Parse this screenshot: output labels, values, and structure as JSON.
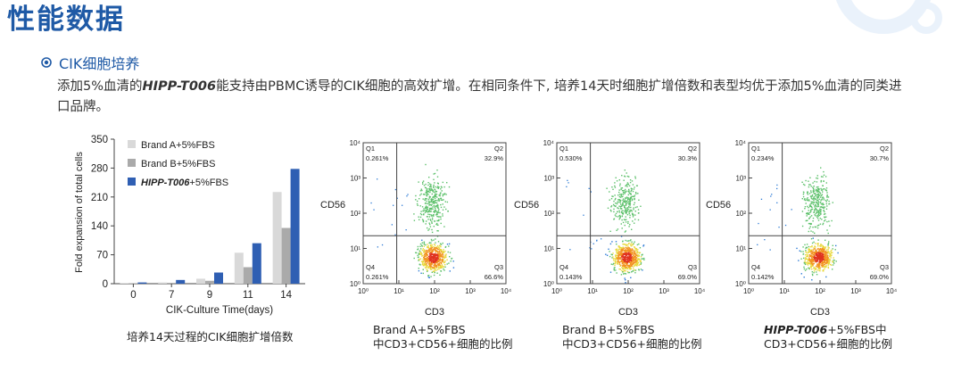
{
  "header": {
    "title": "性能数据"
  },
  "section": {
    "title": "CIK细胞培养",
    "desc_1": "添加5%血清的",
    "desc_product": "HIPP-T006",
    "desc_2": "能支持由PBMC诱导的CIK细胞的高效扩增。在相同条件下, 培养14天时细胞扩增倍数和表型均优于添加5%血清的同类进口品牌。"
  },
  "chart_data": [
    {
      "type": "bar",
      "title": "",
      "xlabel": "CIK-Culture Time(days)",
      "ylabel": "Fold expansion of total cells",
      "categories": [
        "0",
        "7",
        "9",
        "11",
        "14"
      ],
      "ylim": [
        0,
        350
      ],
      "yticks": [
        "0",
        "70",
        "140",
        "210",
        "280",
        "350"
      ],
      "legend_position": "top-left",
      "series": [
        {
          "name": "Brand A+5%FBS",
          "color": "#d9d9d9",
          "values": [
            1,
            3,
            12,
            75,
            222
          ]
        },
        {
          "name": "Brand B+5%FBS",
          "color": "#aaaaaa",
          "values": [
            1,
            2,
            7,
            40,
            135
          ]
        },
        {
          "name_italic": "HIPP-T006",
          "name_suffix": "+5%FBS",
          "color": "#2f5fb3",
          "values": [
            3,
            9,
            27,
            98,
            278
          ]
        }
      ],
      "caption": "培养14天过程的CIK细胞扩增倍数"
    },
    {
      "type": "scatter",
      "xlabel": "CD3",
      "ylabel": "CD56",
      "xticks": [
        "10⁰",
        "10¹",
        "10²",
        "10³",
        "10⁴"
      ],
      "yticks": [
        "10⁰",
        "10¹",
        "10²",
        "10³",
        "10⁴"
      ],
      "quadrants": {
        "Q1": "0.261%",
        "Q2": "32.9%",
        "Q3": "66.6%",
        "Q4": "0.261%"
      },
      "caption_1": "Brand A+5%FBS",
      "caption_2": "中CD3+CD56+细胞的比例"
    },
    {
      "type": "scatter",
      "xlabel": "CD3",
      "ylabel": "CD56",
      "xticks": [
        "10⁰",
        "10¹",
        "10²",
        "10³",
        "10⁴"
      ],
      "yticks": [
        "10⁰",
        "10¹",
        "10²",
        "10³",
        "10⁴"
      ],
      "quadrants": {
        "Q1": "0.530%",
        "Q2": "30.3%",
        "Q3": "69.0%",
        "Q4": "0.143%"
      },
      "caption_1": "Brand B+5%FBS",
      "caption_2": "中CD3+CD56+细胞的比例"
    },
    {
      "type": "scatter",
      "xlabel": "CD3",
      "ylabel": "CD56",
      "xticks": [
        "10⁰",
        "10¹",
        "10²",
        "10³",
        "10⁴"
      ],
      "yticks": [
        "10⁰",
        "10¹",
        "10²",
        "10³",
        "10⁴"
      ],
      "quadrants": {
        "Q1": "0.234%",
        "Q2": "30.7%",
        "Q3": "69.0%",
        "Q4": "0.142%"
      },
      "caption_italic": "HIPP-T006",
      "caption_1": "+5%FBS中",
      "caption_2": "CD3+CD56+细胞的比例"
    }
  ]
}
